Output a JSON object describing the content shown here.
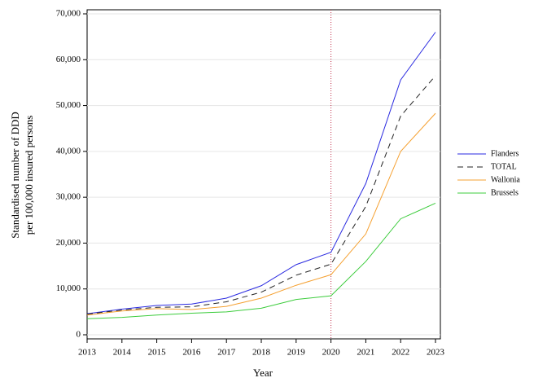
{
  "chart_data": {
    "type": "line",
    "x_label": "Year",
    "y_label": [
      "Standardised number of DDD",
      "per 100,000 insured persons"
    ],
    "x": [
      2013,
      2014,
      2015,
      2016,
      2017,
      2018,
      2019,
      2020,
      2021,
      2022,
      2023
    ],
    "xlim": [
      2013,
      2023
    ],
    "xticks": [
      2013,
      2014,
      2015,
      2016,
      2017,
      2018,
      2019,
      2020,
      2021,
      2022,
      2023
    ],
    "ylim": [
      0,
      70000
    ],
    "yticks": [
      0,
      {
        "value": 10000,
        "label": "10,000"
      },
      {
        "value": 20000,
        "label": "20,000"
      },
      {
        "value": 30000,
        "label": "30,000"
      },
      {
        "value": 40000,
        "label": "40,000"
      },
      {
        "value": 50000,
        "label": "50,000"
      },
      {
        "value": 60000,
        "label": "60,000"
      },
      {
        "value": 70000,
        "label": "70,000"
      }
    ],
    "grid": true,
    "reference_x": 2020,
    "reference_color": "#c0304a",
    "legend": "right",
    "series": [
      {
        "name": "Flanders",
        "color": "#2a2ae0",
        "dashed": false,
        "values": [
          4600,
          5600,
          6400,
          6700,
          8000,
          10700,
          15300,
          18000,
          33000,
          55600,
          66000
        ]
      },
      {
        "name": "TOTAL",
        "color": "#222222",
        "dashed": true,
        "values": [
          4500,
          5400,
          6000,
          6100,
          7200,
          9300,
          13000,
          15400,
          28000,
          47700,
          56500
        ]
      },
      {
        "name": "Wallonia",
        "color": "#f5a030",
        "dashed": false,
        "values": [
          4300,
          5200,
          5700,
          5500,
          6200,
          8000,
          10800,
          13100,
          22000,
          40000,
          48300
        ]
      },
      {
        "name": "Brussels",
        "color": "#3ccc3c",
        "dashed": false,
        "values": [
          3500,
          3800,
          4300,
          4700,
          5000,
          5800,
          7700,
          8500,
          16000,
          25300,
          28700
        ]
      }
    ]
  }
}
